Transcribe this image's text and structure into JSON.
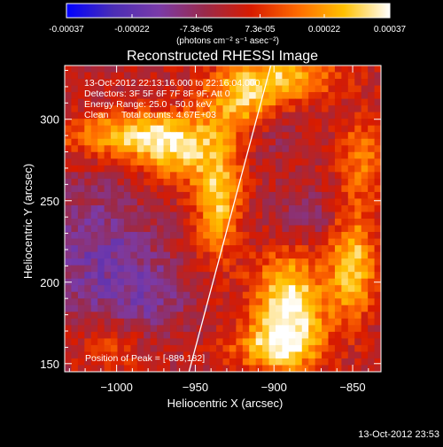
{
  "chart_data": {
    "type": "heatmap",
    "title": "Reconstructed RHESSI Image",
    "xlabel": "Heliocentric X (arcsec)",
    "ylabel": "Heliocentric Y (arcsec)",
    "xlim": [
      -1033,
      -832
    ],
    "ylim": [
      145,
      333
    ],
    "x_ticks": [
      -1000,
      -950,
      -900,
      -850
    ],
    "x_tick_labels": [
      "−1000",
      "−950",
      "−900",
      "−850"
    ],
    "y_ticks": [
      150,
      200,
      250,
      300
    ],
    "y_tick_labels": [
      "150",
      "200",
      "250",
      "300"
    ],
    "colorbar": {
      "min": -0.00037,
      "max": 0.00037,
      "ticks": [
        -0.00037,
        -0.00022,
        -7.3e-05,
        7.3e-05,
        0.00022,
        0.00037
      ],
      "tick_labels": [
        "-0.00037",
        "-0.00022",
        "-7.3e-05",
        "7.3e-05",
        "0.00022",
        "0.00037"
      ],
      "unit_label": "(photons cm⁻² s⁻¹ asec⁻²)"
    },
    "info_lines": [
      "13-Oct-2012 22:13:16.000 to 22:16:04.000",
      "Detectors: 3F 5F 6F 7F 8F 9F, Att 0",
      "Energy Range: 25.0 - 50.0 keV",
      "Clean     Total counts: 4.67E+03"
    ],
    "peak_label": "Position of Peak = [-889,182]",
    "peak_position": [
      -889,
      182
    ],
    "limb_line": {
      "x": [
        -954,
        -902
      ],
      "y": [
        145,
        333
      ],
      "color": "#ffffff"
    },
    "hot_regions": [
      {
        "x": -990,
        "y": 290,
        "sx": 30,
        "sy": 10,
        "amp": 0.00028
      },
      {
        "x": -960,
        "y": 278,
        "sx": 18,
        "sy": 14,
        "amp": 0.00022
      },
      {
        "x": -935,
        "y": 250,
        "sx": 10,
        "sy": 24,
        "amp": 0.00028
      },
      {
        "x": -920,
        "y": 312,
        "sx": 18,
        "sy": 14,
        "amp": 0.00026
      },
      {
        "x": -890,
        "y": 326,
        "sx": 22,
        "sy": 10,
        "amp": 0.00024
      },
      {
        "x": -845,
        "y": 275,
        "sx": 10,
        "sy": 18,
        "amp": 0.00018
      },
      {
        "x": -890,
        "y": 185,
        "sx": 16,
        "sy": 22,
        "amp": 0.00037
      },
      {
        "x": -850,
        "y": 210,
        "sx": 10,
        "sy": 22,
        "amp": 0.0003
      },
      {
        "x": -900,
        "y": 160,
        "sx": 20,
        "sy": 10,
        "amp": 0.00022
      },
      {
        "x": -1005,
        "y": 160,
        "sx": 16,
        "sy": 10,
        "amp": 0.00012
      }
    ],
    "cold_regions": [
      {
        "x": -1010,
        "y": 215,
        "sx": 25,
        "sy": 30,
        "amp": -0.00016
      },
      {
        "x": -975,
        "y": 190,
        "sx": 15,
        "sy": 15,
        "amp": -0.0001
      },
      {
        "x": -880,
        "y": 240,
        "sx": 15,
        "sy": 12,
        "amp": -8e-05
      },
      {
        "x": -900,
        "y": 295,
        "sx": 12,
        "sy": 12,
        "amp": -8e-05
      }
    ],
    "noise_amplitude": 6e-05,
    "grid": false,
    "colormap": [
      "#0000ff",
      "#4a2db5",
      "#7a3ba8",
      "#9a2a4a",
      "#d81b00",
      "#ff6a00",
      "#ffc000",
      "#ffffff"
    ]
  },
  "footer": {
    "timestamp": "13-Oct-2012 23:53"
  }
}
